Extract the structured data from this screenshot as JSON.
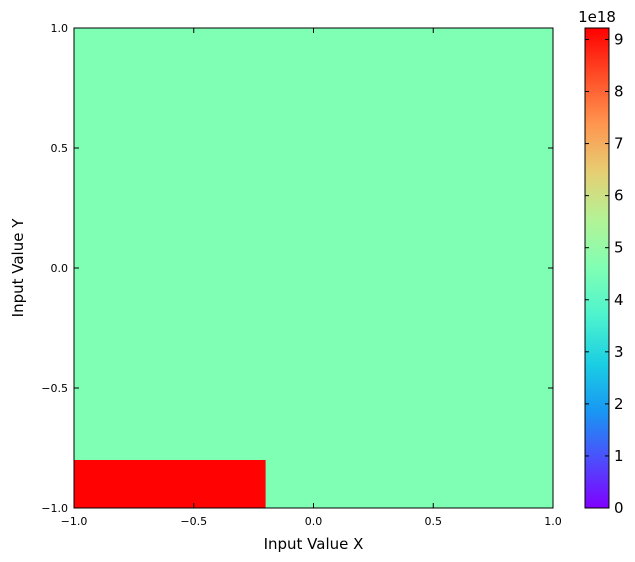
{
  "chart_data": {
    "type": "heatmap",
    "title": "",
    "xlabel": "Input Value X",
    "ylabel": "Input Value Y",
    "xlim": [
      -1.0,
      1.0
    ],
    "ylim": [
      -1.0,
      1.0
    ],
    "x_ticks": [
      -1.0,
      -0.5,
      0.0,
      0.5,
      1.0
    ],
    "x_tick_labels": [
      "−1.0",
      "−0.5",
      "0.0",
      "0.5",
      "1.0"
    ],
    "y_ticks": [
      -1.0,
      -0.5,
      0.0,
      0.5,
      1.0
    ],
    "y_tick_labels": [
      "−1.0",
      "−0.5",
      "0.0",
      "0.5",
      "1.0"
    ],
    "colormap": "rainbow",
    "background_value": 4.6e+18,
    "cells": [
      {
        "x0": -1.0,
        "x1": -0.2,
        "y0": -1.0,
        "y1": -0.8,
        "value": 9.2e+18
      }
    ],
    "colorbar": {
      "vmin": 0,
      "vmax": 9.22e+18,
      "ticks": [
        0,
        1e+18,
        2e+18,
        3e+18,
        4e+18,
        5e+18,
        6e+18,
        7e+18,
        8e+18,
        9e+18
      ],
      "tick_labels": [
        "0",
        "1",
        "2",
        "3",
        "4",
        "5",
        "6",
        "7",
        "8",
        "9"
      ],
      "offset_label": "1e18"
    },
    "grid": false
  }
}
